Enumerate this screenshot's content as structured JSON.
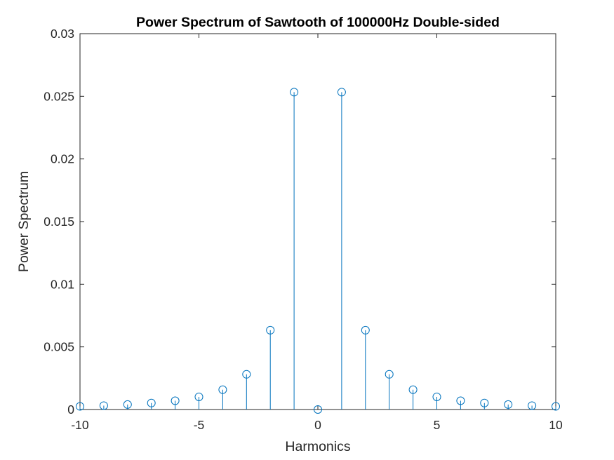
{
  "chart_data": {
    "type": "stem",
    "title": "Power Spectrum of Sawtooth of 100000Hz Double-sided",
    "xlabel": "Harmonics",
    "ylabel": "Power Spectrum",
    "xlim": [
      -10,
      10
    ],
    "ylim": [
      0,
      0.03
    ],
    "xticks": [
      -10,
      -5,
      0,
      5,
      10
    ],
    "xtick_labels": [
      "-10",
      "-5",
      "0",
      "5",
      "10"
    ],
    "yticks": [
      0,
      0.005,
      0.01,
      0.015,
      0.02,
      0.025,
      0.03
    ],
    "ytick_labels": [
      "0",
      "0.005",
      "0.01",
      "0.015",
      "0.02",
      "0.025",
      "0.03"
    ],
    "grid": false,
    "series": [
      {
        "color": "#0072BD",
        "marker": "circle",
        "x": [
          -10,
          -9,
          -8,
          -7,
          -6,
          -5,
          -4,
          -3,
          -2,
          -1,
          0,
          1,
          2,
          3,
          4,
          5,
          6,
          7,
          8,
          9,
          10
        ],
        "y": [
          0.00025,
          0.00031,
          0.0004,
          0.00052,
          0.0007,
          0.00101,
          0.00158,
          0.00281,
          0.00633,
          0.02533,
          0,
          0.02533,
          0.00633,
          0.00281,
          0.00158,
          0.00101,
          0.0007,
          0.00052,
          0.0004,
          0.00031,
          0.00025
        ]
      }
    ]
  }
}
